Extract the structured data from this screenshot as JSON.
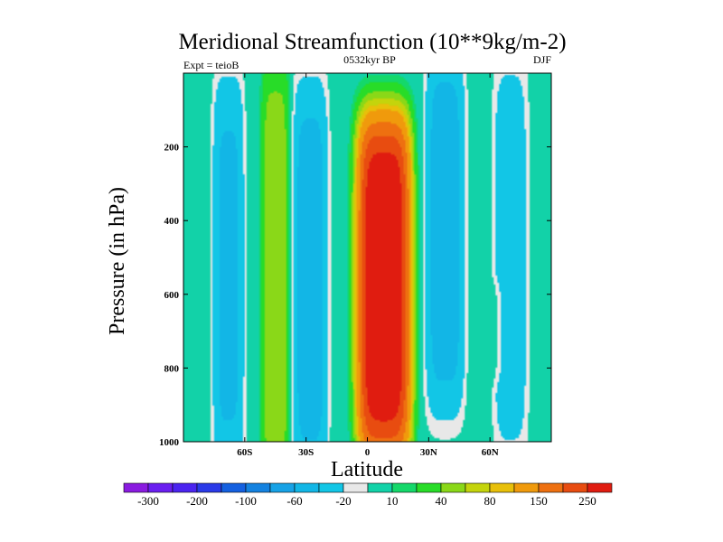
{
  "chart_data": {
    "type": "heatmap",
    "title": "Meridional Streamfunction (10**9kg/m-2)",
    "left_label": "Expt = teioB",
    "center_label": "0532kyr BP",
    "right_label": "DJF",
    "xlabel": "Latitude",
    "ylabel": "Pressure (in hPa)",
    "x_range": [
      -90,
      90
    ],
    "y_range": [
      0,
      1000
    ],
    "x_ticks": [
      {
        "value": -60,
        "label": "60S"
      },
      {
        "value": -30,
        "label": "30S"
      },
      {
        "value": 0,
        "label": "0"
      },
      {
        "value": 30,
        "label": "30N"
      },
      {
        "value": 60,
        "label": "60N"
      }
    ],
    "y_ticks": [
      {
        "value": 200,
        "label": "200"
      },
      {
        "value": 400,
        "label": "400"
      },
      {
        "value": 600,
        "label": "600"
      },
      {
        "value": 800,
        "label": "800"
      },
      {
        "value": 1000,
        "label": "1000"
      }
    ],
    "levels": [
      -300,
      -250,
      -200,
      -150,
      -100,
      -80,
      -60,
      -40,
      -20,
      -10,
      10,
      20,
      40,
      60,
      80,
      100,
      150,
      200,
      250,
      300
    ],
    "colorbar_labels": [
      {
        "after_level": -300,
        "label": "-300"
      },
      {
        "after_level": -200,
        "label": "-200"
      },
      {
        "after_level": -100,
        "label": "-100"
      },
      {
        "after_level": -60,
        "label": "-60"
      },
      {
        "after_level": -20,
        "label": "-20"
      },
      {
        "after_level": 10,
        "label": "10"
      },
      {
        "after_level": 40,
        "label": "40"
      },
      {
        "after_level": 80,
        "label": "80"
      },
      {
        "after_level": 150,
        "label": "150"
      },
      {
        "after_level": 250,
        "label": "250"
      }
    ],
    "colors": [
      "#8a1be0",
      "#6a1ef0",
      "#4b24f0",
      "#2a3ae8",
      "#1460e0",
      "#1482e0",
      "#17a2e6",
      "#12b6e6",
      "#12c6e6",
      "#e8e8e8",
      "#12d2a8",
      "#14d86a",
      "#28dc28",
      "#8ad818",
      "#c4d40c",
      "#e8c00a",
      "#f09a0c",
      "#ee7010",
      "#e84c10",
      "#e01c10"
    ],
    "field_features": [
      {
        "name": "southern-polar-cell",
        "lat": -68,
        "p": 550,
        "lat_halfwidth": 8,
        "p_halfwidth": 560,
        "value": -45
      },
      {
        "name": "southern-ferrel-cell",
        "lat": -45,
        "p": 560,
        "lat_halfwidth": 7,
        "p_halfwidth": 600,
        "value": 58
      },
      {
        "name": "southern-subtropical-band",
        "lat": -28,
        "p": 560,
        "lat_halfwidth": 9,
        "p_halfwidth": 560,
        "value": -50
      },
      {
        "name": "hadley-cell",
        "lat": 8,
        "p": 580,
        "lat_halfwidth": 13,
        "p_halfwidth": 470,
        "value": 310
      },
      {
        "name": "northern-ferrel-cell",
        "lat": 38,
        "p": 430,
        "lat_halfwidth": 10,
        "p_halfwidth": 520,
        "value": -50
      },
      {
        "name": "northern-polar-cell",
        "lat": 70,
        "p": 500,
        "lat_halfwidth": 9,
        "p_halfwidth": 560,
        "value": -32
      },
      {
        "name": "northern-weak-positive",
        "lat": 62,
        "p": 700,
        "lat_halfwidth": 4,
        "p_halfwidth": 140,
        "value": 14
      }
    ]
  }
}
